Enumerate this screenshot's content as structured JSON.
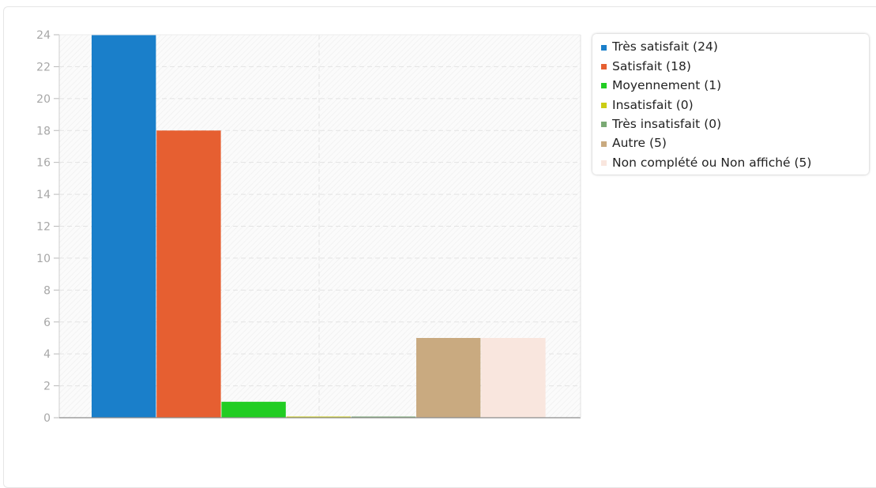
{
  "chart_data": {
    "type": "bar",
    "title": "",
    "xlabel": "",
    "ylabel": "",
    "ylim": [
      0,
      24
    ],
    "ytick_step": 2,
    "yticks": [
      "0",
      "2",
      "4",
      "6",
      "8",
      "10",
      "12",
      "14",
      "16",
      "18",
      "20",
      "22",
      "24"
    ],
    "grid": true,
    "legend_position": "top-right",
    "categories": [
      "Très satisfait",
      "Satisfait",
      "Moyennement",
      "Insatisfait",
      "Très insatisfait",
      "Autre",
      "Non complété ou Non affiché"
    ],
    "values": [
      24,
      18,
      1,
      0,
      0,
      5,
      5
    ],
    "colors": [
      "#1a7fca",
      "#e65f31",
      "#22cd23",
      "#cbcd14",
      "#7aa974",
      "#c9aa80",
      "#f9e6de"
    ],
    "legend": [
      "Très satisfait (24)",
      "Satisfait (18)",
      "Moyennement (1)",
      "Insatisfait (0)",
      "Très insatisfait (0)",
      "Autre (5)",
      "Non complété ou Non affiché (5)"
    ]
  }
}
